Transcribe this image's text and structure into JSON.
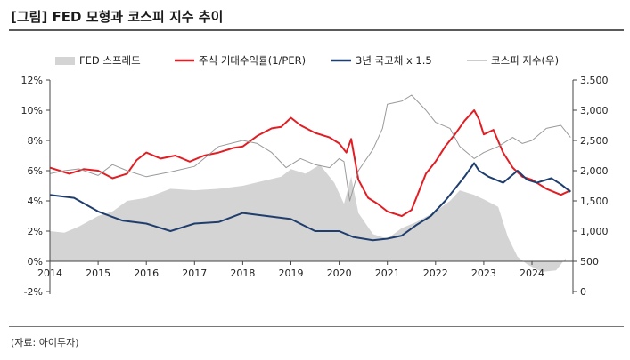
{
  "figure": {
    "title": "[그림] FED 모형과 코스피 지수 추이",
    "source": "(자료: 아이투자)"
  },
  "colors": {
    "fed_spread": "#d4d4d4",
    "earnings_yield": "#e01e24",
    "bond_yield": "#1f3e6e",
    "kospi": "#9a9a9a",
    "axis": "#444444"
  },
  "chart_data": {
    "type": "line",
    "title": "",
    "x_ticks": [
      "2014",
      "2015",
      "2016",
      "2017",
      "2018",
      "2019",
      "2020",
      "2021",
      "2022",
      "2023",
      "2024"
    ],
    "y_left": {
      "ticks": [
        "12%",
        "10%",
        "8%",
        "6%",
        "4%",
        "2%",
        "0%",
        "-2%"
      ],
      "range": [
        -2,
        12
      ],
      "unit": "%"
    },
    "y_right": {
      "ticks": [
        "3,500",
        "3,000",
        "2,500",
        "2,000",
        "1,500",
        "1,000",
        "500",
        "0"
      ],
      "range": [
        0,
        3500
      ]
    },
    "legend_position": "top",
    "series": [
      {
        "name": "FED 스프레드",
        "type": "area",
        "axis": "left",
        "color": "#d4d4d4",
        "x": [
          2014.0,
          2014.3,
          2014.6,
          2015.0,
          2015.3,
          2015.6,
          2016.0,
          2016.5,
          2017.0,
          2017.5,
          2018.0,
          2018.4,
          2018.8,
          2019.0,
          2019.3,
          2019.6,
          2019.9,
          2020.1,
          2020.25,
          2020.4,
          2020.7,
          2021.0,
          2021.3,
          2021.6,
          2022.0,
          2022.3,
          2022.5,
          2022.8,
          2023.0,
          2023.3,
          2023.5,
          2023.7,
          2023.9,
          2024.2,
          2024.5,
          2024.7
        ],
        "y": [
          2.0,
          1.9,
          2.3,
          3.0,
          3.3,
          4.0,
          4.2,
          4.8,
          4.7,
          4.8,
          5.0,
          5.3,
          5.6,
          6.1,
          5.8,
          6.4,
          5.2,
          3.8,
          5.6,
          3.2,
          1.8,
          1.5,
          2.2,
          2.6,
          3.3,
          4.0,
          4.7,
          4.4,
          4.1,
          3.6,
          1.6,
          0.3,
          -0.2,
          -0.7,
          -0.6,
          0.2
        ]
      },
      {
        "name": "주식 기대수익률(1/PER)",
        "type": "line",
        "axis": "left",
        "color": "#e01e24",
        "x": [
          2014.0,
          2014.2,
          2014.4,
          2014.7,
          2015.0,
          2015.3,
          2015.6,
          2015.8,
          2016.0,
          2016.3,
          2016.6,
          2016.9,
          2017.2,
          2017.5,
          2017.8,
          2018.0,
          2018.3,
          2018.6,
          2018.8,
          2019.0,
          2019.2,
          2019.5,
          2019.8,
          2020.0,
          2020.15,
          2020.25,
          2020.4,
          2020.6,
          2020.8,
          2021.0,
          2021.3,
          2021.5,
          2021.8,
          2022.0,
          2022.2,
          2022.4,
          2022.6,
          2022.8,
          2022.9,
          2023.0,
          2023.2,
          2023.4,
          2023.6,
          2023.8,
          2024.0,
          2024.3,
          2024.6,
          2024.8
        ],
        "y": [
          6.2,
          6.0,
          5.8,
          6.1,
          6.0,
          5.5,
          5.8,
          6.7,
          7.2,
          6.8,
          7.0,
          6.6,
          7.0,
          7.2,
          7.5,
          7.6,
          8.3,
          8.8,
          8.9,
          9.5,
          9.0,
          8.5,
          8.2,
          7.8,
          7.2,
          8.1,
          5.4,
          4.2,
          3.8,
          3.3,
          3.0,
          3.4,
          5.8,
          6.6,
          7.6,
          8.4,
          9.3,
          10.0,
          9.4,
          8.4,
          8.7,
          7.2,
          6.2,
          5.6,
          5.4,
          4.8,
          4.4,
          4.7
        ]
      },
      {
        "name": "3년 국고채 x 1.5",
        "type": "line",
        "axis": "left",
        "color": "#1f3e6e",
        "x": [
          2014.0,
          2014.5,
          2015.0,
          2015.5,
          2016.0,
          2016.5,
          2017.0,
          2017.5,
          2018.0,
          2018.5,
          2019.0,
          2019.5,
          2020.0,
          2020.3,
          2020.7,
          2021.0,
          2021.3,
          2021.6,
          2021.9,
          2022.2,
          2022.4,
          2022.6,
          2022.8,
          2022.9,
          2023.1,
          2023.4,
          2023.7,
          2023.9,
          2024.1,
          2024.4,
          2024.6,
          2024.8
        ],
        "y": [
          4.4,
          4.2,
          3.3,
          2.7,
          2.5,
          2.0,
          2.5,
          2.6,
          3.2,
          3.0,
          2.8,
          2.0,
          2.0,
          1.6,
          1.4,
          1.5,
          1.7,
          2.4,
          3.0,
          4.0,
          4.8,
          5.6,
          6.5,
          6.0,
          5.6,
          5.2,
          6.0,
          5.4,
          5.2,
          5.5,
          5.1,
          4.6
        ]
      },
      {
        "name": "코스피 지수(우)",
        "type": "line",
        "axis": "right",
        "color": "#9a9a9a",
        "x": [
          2014.0,
          2014.3,
          2014.6,
          2015.0,
          2015.3,
          2015.6,
          2016.0,
          2016.5,
          2017.0,
          2017.5,
          2018.0,
          2018.3,
          2018.6,
          2018.9,
          2019.2,
          2019.5,
          2019.8,
          2020.0,
          2020.1,
          2020.22,
          2020.4,
          2020.7,
          2020.9,
          2021.0,
          2021.3,
          2021.5,
          2021.8,
          2022.0,
          2022.3,
          2022.5,
          2022.8,
          2022.9,
          2023.0,
          2023.3,
          2023.6,
          2023.8,
          2024.0,
          2024.3,
          2024.6,
          2024.8
        ],
        "y": [
          1950,
          2000,
          2030,
          1920,
          2100,
          2000,
          1900,
          1980,
          2070,
          2400,
          2500,
          2450,
          2300,
          2050,
          2200,
          2100,
          2050,
          2200,
          2150,
          1500,
          2000,
          2350,
          2700,
          3100,
          3150,
          3250,
          3000,
          2800,
          2700,
          2400,
          2200,
          2250,
          2300,
          2400,
          2550,
          2450,
          2500,
          2700,
          2750,
          2550
        ]
      }
    ]
  }
}
